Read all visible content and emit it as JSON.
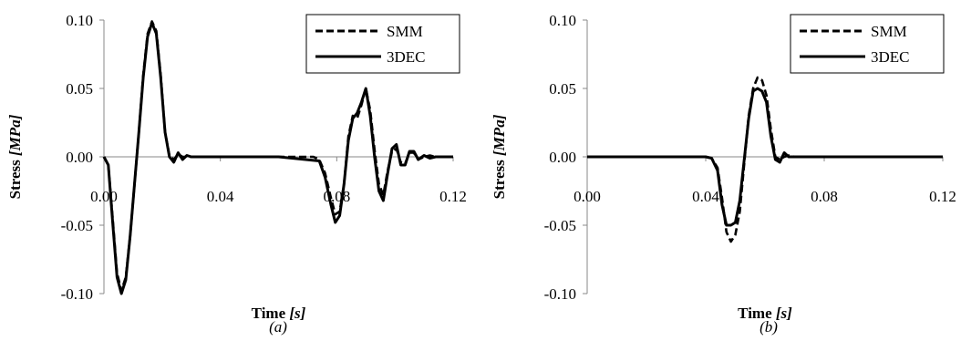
{
  "chart_data": [
    {
      "type": "line",
      "caption": "(a)",
      "xlabel_main": "Time ",
      "xlabel_unit": "[s]",
      "ylabel_main": "Stress ",
      "ylabel_unit": "[MPa]",
      "xlim": [
        0,
        0.12
      ],
      "ylim": [
        -0.1,
        0.1
      ],
      "xticks": [
        "0.00",
        "0.04",
        "0.08",
        "0.12"
      ],
      "yticks": [
        "-0.10",
        "-0.05",
        "0.00",
        "0.05",
        "0.10"
      ],
      "grid": false,
      "legend_position": "top-right",
      "series": [
        {
          "name": "SMM",
          "style": "dashed",
          "color": "#000000",
          "x": [
            0,
            0.0015,
            0.003,
            0.0045,
            0.006,
            0.0075,
            0.009,
            0.0105,
            0.012,
            0.0135,
            0.015,
            0.0165,
            0.018,
            0.0195,
            0.021,
            0.0225,
            0.024,
            0.0255,
            0.027,
            0.03,
            0.033,
            0.036,
            0.045,
            0.06,
            0.072,
            0.074,
            0.076,
            0.078,
            0.0795,
            0.081,
            0.0825,
            0.084,
            0.0855,
            0.087,
            0.0885,
            0.09,
            0.0915,
            0.093,
            0.0945,
            0.096,
            0.0975,
            0.099,
            0.1005,
            0.102,
            0.1035,
            0.105,
            0.1065,
            0.108,
            0.11,
            0.112,
            0.114,
            0.117,
            0.12
          ],
          "y": [
            0,
            -0.006,
            -0.045,
            -0.085,
            -0.098,
            -0.088,
            -0.058,
            -0.02,
            0.018,
            0.06,
            0.09,
            0.099,
            0.092,
            0.06,
            0.018,
            0.001,
            -0.002,
            0.002,
            0.0,
            0.0,
            0.0,
            0.0,
            0.0,
            0.0,
            0.0,
            -0.002,
            -0.012,
            -0.03,
            -0.042,
            -0.04,
            -0.02,
            0.015,
            0.03,
            0.028,
            0.038,
            0.05,
            0.034,
            0.005,
            -0.02,
            -0.028,
            -0.01,
            0.004,
            0.006,
            -0.004,
            -0.005,
            0.003,
            0.003,
            -0.002,
            0.0,
            0.001,
            0.0,
            0.0,
            0.0
          ]
        },
        {
          "name": "3DEC",
          "style": "solid",
          "color": "#000000",
          "x": [
            0,
            0.0015,
            0.003,
            0.0045,
            0.006,
            0.0075,
            0.009,
            0.0105,
            0.012,
            0.0135,
            0.015,
            0.0165,
            0.018,
            0.0195,
            0.021,
            0.0225,
            0.024,
            0.0255,
            0.027,
            0.0285,
            0.03,
            0.033,
            0.036,
            0.045,
            0.06,
            0.074,
            0.076,
            0.078,
            0.0795,
            0.081,
            0.0825,
            0.084,
            0.0855,
            0.087,
            0.0885,
            0.09,
            0.0915,
            0.093,
            0.0945,
            0.096,
            0.0975,
            0.099,
            0.1005,
            0.102,
            0.1035,
            0.105,
            0.1065,
            0.108,
            0.11,
            0.112,
            0.114,
            0.117,
            0.12
          ],
          "y": [
            0,
            -0.006,
            -0.048,
            -0.088,
            -0.1,
            -0.09,
            -0.058,
            -0.02,
            0.018,
            0.058,
            0.088,
            0.098,
            0.09,
            0.058,
            0.018,
            0.0,
            -0.004,
            0.003,
            -0.002,
            0.001,
            0.0,
            0.0,
            0.0,
            0.0,
            0.0,
            -0.003,
            -0.015,
            -0.035,
            -0.048,
            -0.043,
            -0.02,
            0.012,
            0.028,
            0.032,
            0.04,
            0.05,
            0.03,
            0.0,
            -0.025,
            -0.032,
            -0.012,
            0.006,
            0.009,
            -0.006,
            -0.006,
            0.004,
            0.004,
            -0.002,
            0.001,
            -0.001,
            0.0,
            0.0,
            0.0
          ]
        }
      ]
    },
    {
      "type": "line",
      "caption": "(b)",
      "xlabel_main": "Time ",
      "xlabel_unit": "[s]",
      "ylabel_main": "Stress ",
      "ylabel_unit": "[MPa]",
      "xlim": [
        0,
        0.12
      ],
      "ylim": [
        -0.1,
        0.1
      ],
      "xticks": [
        "0.00",
        "0.04",
        "0.08",
        "0.12"
      ],
      "yticks": [
        "-0.10",
        "-0.05",
        "0.00",
        "0.05",
        "0.10"
      ],
      "grid": false,
      "legend_position": "top-right",
      "series": [
        {
          "name": "SMM",
          "style": "dashed",
          "color": "#000000",
          "x": [
            0,
            0.02,
            0.04,
            0.042,
            0.044,
            0.0455,
            0.047,
            0.0485,
            0.05,
            0.0515,
            0.053,
            0.0545,
            0.056,
            0.0575,
            0.059,
            0.0605,
            0.062,
            0.0635,
            0.065,
            0.0665,
            0.068,
            0.07,
            0.072,
            0.075,
            0.08,
            0.09,
            0.1,
            0.11,
            0.12
          ],
          "y": [
            0,
            0,
            0,
            -0.001,
            -0.008,
            -0.03,
            -0.055,
            -0.062,
            -0.057,
            -0.04,
            -0.005,
            0.03,
            0.05,
            0.058,
            0.056,
            0.045,
            0.02,
            0.0,
            -0.002,
            0.0,
            0.001,
            0.0,
            0.0,
            0.0,
            0.0,
            0.0,
            0.0,
            0.0,
            0.0
          ]
        },
        {
          "name": "3DEC",
          "style": "solid",
          "color": "#000000",
          "x": [
            0,
            0.02,
            0.04,
            0.042,
            0.044,
            0.0455,
            0.047,
            0.0485,
            0.05,
            0.0515,
            0.053,
            0.0545,
            0.056,
            0.0575,
            0.059,
            0.0605,
            0.062,
            0.0635,
            0.065,
            0.0665,
            0.068,
            0.07,
            0.072,
            0.075,
            0.08,
            0.09,
            0.1,
            0.11,
            0.12
          ],
          "y": [
            0,
            0,
            0,
            -0.001,
            -0.01,
            -0.035,
            -0.05,
            -0.05,
            -0.048,
            -0.032,
            -0.002,
            0.028,
            0.048,
            0.05,
            0.048,
            0.04,
            0.015,
            -0.002,
            -0.004,
            0.003,
            0.0,
            0.0,
            0.0,
            0.0,
            0.0,
            0.0,
            0.0,
            0.0,
            0.0
          ]
        }
      ]
    }
  ]
}
